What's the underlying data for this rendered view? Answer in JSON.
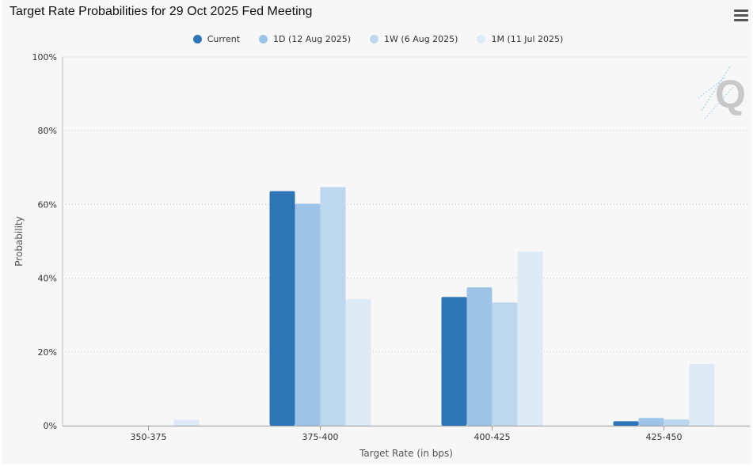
{
  "title": "Target Rate Probabilities for 29 Oct 2025 Fed Meeting",
  "menu_icon": "hamburger-menu-icon",
  "watermark_icon": "q-logo-icon",
  "colors": [
    "#2e75b6",
    "#9dc3e6",
    "#bdd7ee",
    "#dde9f5"
  ],
  "chart_data": {
    "type": "bar",
    "title": "Target Rate Probabilities for 29 Oct 2025 Fed Meeting",
    "xlabel": "Target Rate (in bps)",
    "ylabel": "Probability",
    "categories": [
      "350-375",
      "375-400",
      "400-425",
      "425-450"
    ],
    "ylim": [
      0,
      100
    ],
    "yticks": [
      "0%",
      "20%",
      "40%",
      "60%",
      "80%",
      "100%"
    ],
    "grid": true,
    "legend_position": "top-center",
    "series": [
      {
        "name": "Current",
        "values": [
          0,
          63.6,
          34.9,
          1.2
        ]
      },
      {
        "name": "1D (12 Aug 2025)",
        "values": [
          0,
          60.2,
          37.5,
          2.1
        ]
      },
      {
        "name": "1W (6 Aug 2025)",
        "values": [
          0,
          64.7,
          33.4,
          1.7
        ]
      },
      {
        "name": "1M (11 Jul 2025)",
        "values": [
          1.6,
          34.3,
          47.2,
          16.7
        ]
      }
    ]
  }
}
